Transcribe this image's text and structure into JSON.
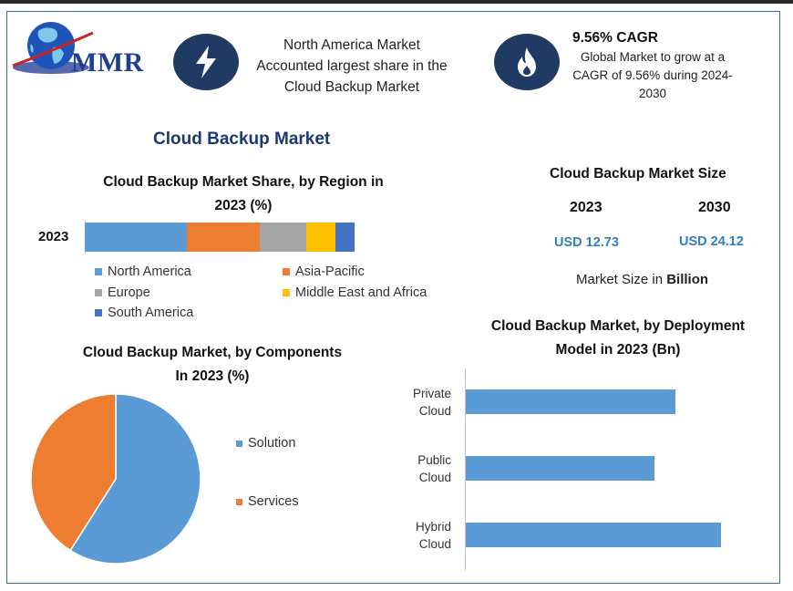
{
  "header": {
    "logo_text": "MMR",
    "highlight_text_lines": [
      "North America Market",
      "Accounted largest share in the",
      "Cloud Backup Market"
    ],
    "cagr_title": "9.56% CAGR",
    "cagr_text_lines": [
      "Global Market to grow at a",
      "CAGR of 9.56% during 2024-",
      "2030"
    ]
  },
  "main_title": "Cloud Backup Market",
  "market_size": {
    "title": "Cloud Backup Market Size",
    "years": [
      "2023",
      "2030"
    ],
    "values": [
      "USD 12.73",
      "USD 24.12"
    ],
    "note_prefix": "Market Size in ",
    "note_bold": "Billion"
  },
  "colors": {
    "north_america": "#5b9bd5",
    "asia_pacific": "#ed7d31",
    "europe": "#a5a5a5",
    "mea": "#ffc000",
    "south_america": "#4472c4",
    "icon_bg": "#1f3a63",
    "title_blue": "#1b3a72"
  },
  "chart_data": [
    {
      "type": "bar",
      "orientation": "horizontal-stacked",
      "title_lines": [
        "Cloud Backup Market Share, by Region in",
        "2023 (%)"
      ],
      "categories": [
        "2023"
      ],
      "series": [
        {
          "name": "North America",
          "values": [
            38
          ],
          "color": "#5b9bd5"
        },
        {
          "name": "Asia-Pacific",
          "values": [
            27
          ],
          "color": "#ed7d31"
        },
        {
          "name": "Europe",
          "values": [
            17
          ],
          "color": "#a5a5a5"
        },
        {
          "name": "Middle East and Africa",
          "values": [
            11
          ],
          "color": "#ffc000"
        },
        {
          "name": "South America",
          "values": [
            7
          ],
          "color": "#4472c4"
        }
      ],
      "xlim": [
        0,
        100
      ],
      "legend": "bottom"
    },
    {
      "type": "pie",
      "title_lines": [
        "Cloud Backup Market, by Components",
        "In 2023 (%)"
      ],
      "slices": [
        {
          "name": "Solution",
          "value": 59,
          "color": "#5b9bd5"
        },
        {
          "name": "Services",
          "value": 41,
          "color": "#ed7d31"
        }
      ],
      "legend": "right"
    },
    {
      "type": "bar",
      "orientation": "horizontal",
      "title_lines": [
        "Cloud Backup Market, by Deployment",
        "Model in 2023 (Bn)"
      ],
      "categories": [
        [
          "Private",
          "Cloud"
        ],
        [
          "Public",
          "Cloud"
        ],
        [
          "Hybrid",
          "Cloud"
        ]
      ],
      "values": [
        4.1,
        3.7,
        5.0
      ],
      "xlim": [
        0,
        6.6
      ],
      "color": "#5b9bd5"
    }
  ]
}
